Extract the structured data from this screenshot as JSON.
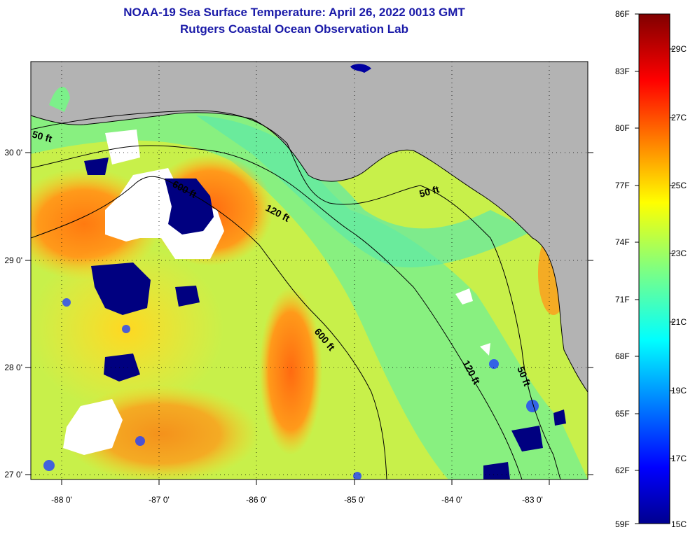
{
  "title": {
    "line1": "NOAA-19 Sea Surface Temperature:  April 26, 2022 0013 GMT",
    "line2": "Rutgers Coastal Ocean Observation Lab"
  },
  "map": {
    "lon_labels": [
      "-88 0'",
      "-87 0'",
      "-86 0'",
      "-85 0'",
      "-84 0'",
      "-83 0'"
    ],
    "lat_labels": [
      "30 0'",
      "29 0'",
      "28 0'",
      "27 0'"
    ],
    "contours": [
      "50 ft",
      "120 ft",
      "600 ft",
      "600 ft",
      "50 ft",
      "120 ft",
      "50 ft"
    ],
    "colors": {
      "land": "#b3b3b3",
      "cloud": "#ffffff",
      "shelf": "#7cf08a",
      "gulf": "#c8f04a",
      "warm": "#ff9a1a"
    }
  },
  "colorbar": {
    "fahrenheit": [
      "86F",
      "83F",
      "80F",
      "77F",
      "74F",
      "71F",
      "68F",
      "65F",
      "62F",
      "59F"
    ],
    "celsius": [
      "29C",
      "27C",
      "25C",
      "23C",
      "21C",
      "19C",
      "17C",
      "15C"
    ]
  }
}
